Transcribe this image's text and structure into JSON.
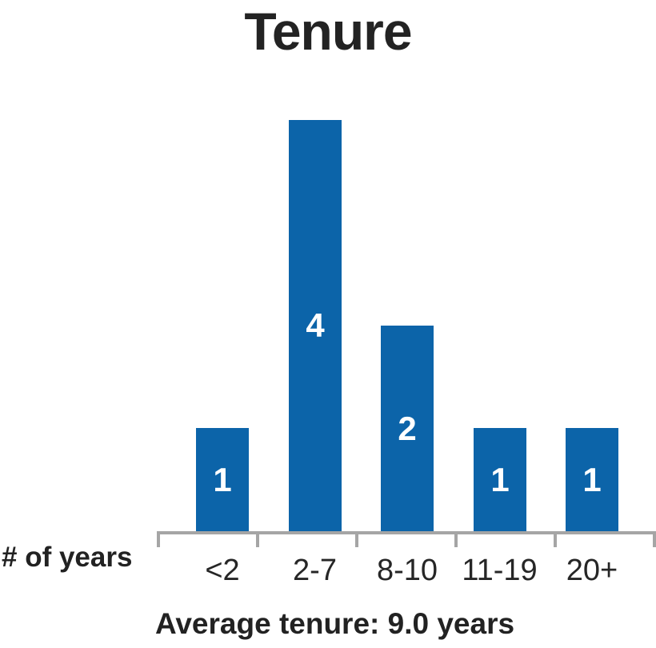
{
  "chart_data": {
    "type": "bar",
    "title": "Tenure",
    "categories": [
      "<2",
      "2-7",
      "8-10",
      "11-19",
      "20+"
    ],
    "values": [
      1,
      4,
      2,
      1,
      1
    ],
    "xlabel": "# of years",
    "footnote": "Average tenure: 9.0 years",
    "ylim": [
      0,
      4
    ],
    "grid": false,
    "legend": "none",
    "data_labels": "inside-center",
    "colors": {
      "bar": "#0c64a9",
      "bar_label": "#ffffff",
      "axis": "#a5a5a5",
      "text": "#232323"
    }
  }
}
